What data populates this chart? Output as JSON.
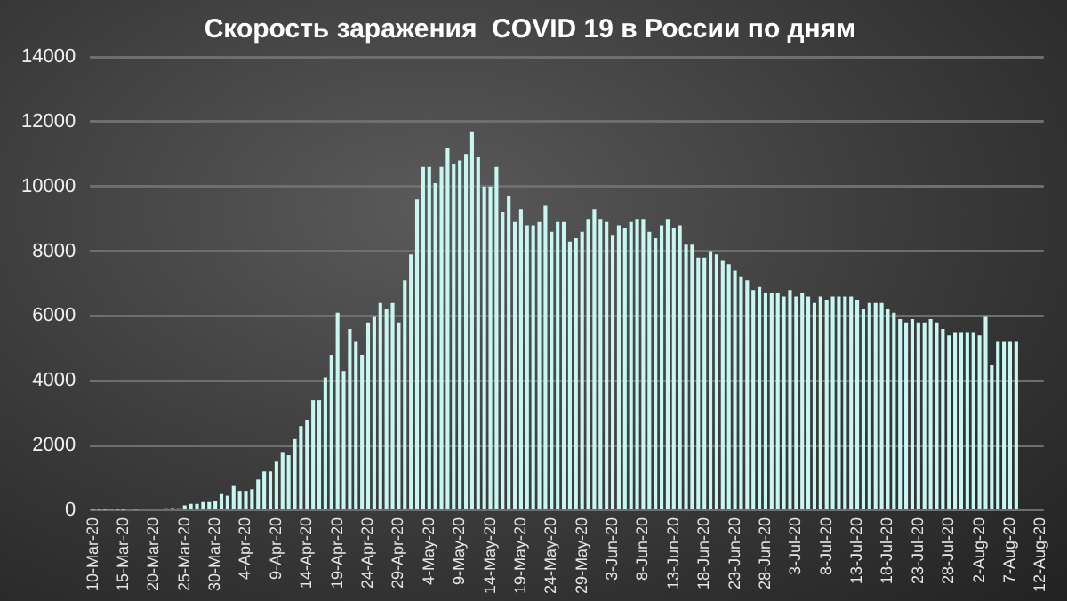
{
  "chart_data": {
    "type": "bar",
    "title": "Скорость заражения  COVID 19 в России по дням",
    "categories": [
      "10-Mar-20",
      null,
      null,
      null,
      null,
      "15-Mar-20",
      null,
      null,
      null,
      null,
      "20-Mar-20",
      null,
      null,
      null,
      null,
      "25-Mar-20",
      null,
      null,
      null,
      null,
      "30-Mar-20",
      null,
      null,
      null,
      null,
      "4-Apr-20",
      null,
      null,
      null,
      null,
      "9-Apr-20",
      null,
      null,
      null,
      null,
      "14-Apr-20",
      null,
      null,
      null,
      null,
      "19-Apr-20",
      null,
      null,
      null,
      null,
      "24-Apr-20",
      null,
      null,
      null,
      null,
      "29-Apr-20",
      null,
      null,
      null,
      null,
      "4-May-20",
      null,
      null,
      null,
      null,
      "9-May-20",
      null,
      null,
      null,
      null,
      "14-May-20",
      null,
      null,
      null,
      null,
      "19-May-20",
      null,
      null,
      null,
      null,
      "24-May-20",
      null,
      null,
      null,
      null,
      "29-May-20",
      null,
      null,
      null,
      null,
      "3-Jun-20",
      null,
      null,
      null,
      null,
      "8-Jun-20",
      null,
      null,
      null,
      null,
      "13-Jun-20",
      null,
      null,
      null,
      null,
      "18-Jun-20",
      null,
      null,
      null,
      null,
      "23-Jun-20",
      null,
      null,
      null,
      null,
      "28-Jun-20",
      null,
      null,
      null,
      null,
      "3-Jul-20",
      null,
      null,
      null,
      null,
      "8-Jul-20",
      null,
      null,
      null,
      null,
      "13-Jul-20",
      null,
      null,
      null,
      null,
      "18-Jul-20",
      null,
      null,
      null,
      null,
      "23-Jul-20",
      null,
      null,
      null,
      null,
      "28-Jul-20",
      null,
      null,
      null,
      null,
      "2-Aug-20",
      null,
      null,
      null,
      null,
      "7-Aug-20",
      null,
      null,
      null,
      null,
      "12-Aug-20"
    ],
    "values": [
      10,
      10,
      10,
      20,
      10,
      10,
      30,
      20,
      30,
      50,
      50,
      50,
      60,
      70,
      60,
      150,
      200,
      200,
      250,
      250,
      300,
      500,
      450,
      750,
      600,
      600,
      650,
      950,
      1200,
      1200,
      1500,
      1800,
      1700,
      2200,
      2600,
      2800,
      3400,
      3400,
      4100,
      4800,
      6100,
      4300,
      5600,
      5200,
      4800,
      5800,
      6000,
      6400,
      6200,
      6400,
      5800,
      7100,
      7900,
      9600,
      10600,
      10600,
      10100,
      10600,
      11200,
      10700,
      10800,
      11000,
      11700,
      10900,
      10000,
      10000,
      10600,
      9200,
      9700,
      8900,
      9300,
      8800,
      8800,
      8900,
      9400,
      8600,
      8900,
      8900,
      8300,
      8400,
      8600,
      9000,
      9300,
      9000,
      8900,
      8500,
      8800,
      8700,
      8900,
      9000,
      9000,
      8600,
      8400,
      8800,
      9000,
      8700,
      8800,
      8200,
      8200,
      7800,
      7800,
      8000,
      7900,
      7700,
      7600,
      7400,
      7200,
      7100,
      6800,
      6900,
      6700,
      6700,
      6700,
      6600,
      6800,
      6600,
      6700,
      6600,
      6400,
      6600,
      6500,
      6600,
      6600,
      6600,
      6600,
      6500,
      6200,
      6400,
      6400,
      6400,
      6200,
      6100,
      5900,
      5800,
      5900,
      5800,
      5800,
      5900,
      5800,
      5600,
      5400,
      5500,
      5500,
      5500,
      5500,
      5400,
      6000,
      4500,
      5200,
      5200,
      5200,
      5200,
      null,
      null,
      null,
      null
    ],
    "color": "#c8f7f2",
    "ylim": [
      0,
      14000
    ],
    "yticks": [
      0,
      2000,
      4000,
      6000,
      8000,
      10000,
      12000,
      14000
    ],
    "grid": "y"
  }
}
